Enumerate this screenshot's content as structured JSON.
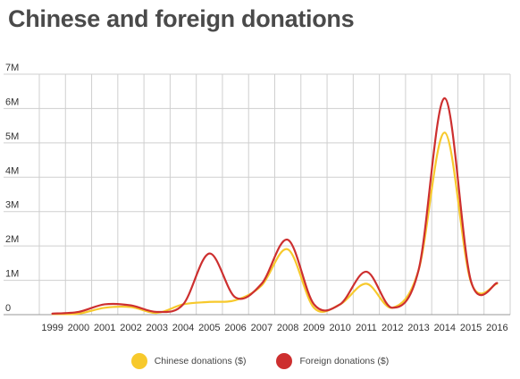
{
  "chart_data": {
    "type": "line",
    "title": "Chinese and foreign donations",
    "xlabel": "",
    "ylabel": "",
    "x": [
      "1999",
      "2000",
      "2001",
      "2002",
      "2003",
      "2004",
      "2005",
      "2006",
      "2007",
      "2008",
      "2009",
      "2010",
      "2011",
      "2012",
      "2013",
      "2014",
      "2015",
      "2016"
    ],
    "y_ticks": [
      {
        "value": 0,
        "label": "0"
      },
      {
        "value": 1000000,
        "label": "1M"
      },
      {
        "value": 2000000,
        "label": "2M"
      },
      {
        "value": 3000000,
        "label": "3M"
      },
      {
        "value": 4000000,
        "label": "4M"
      },
      {
        "value": 5000000,
        "label": "5M"
      },
      {
        "value": 6000000,
        "label": "6M"
      },
      {
        "value": 7000000,
        "label": "7M"
      }
    ],
    "ylim": [
      0,
      7000000
    ],
    "grid": true,
    "legend_position": "bottom",
    "series": [
      {
        "name": "Chinese donations ($)",
        "color": "#f7c92c",
        "values": [
          20000,
          30000,
          200000,
          220000,
          50000,
          300000,
          370000,
          420000,
          850000,
          1900000,
          200000,
          300000,
          900000,
          200000,
          1300000,
          5300000,
          950000,
          900000
        ]
      },
      {
        "name": "Foreign donations ($)",
        "color": "#cd2f2f",
        "values": [
          30000,
          80000,
          300000,
          270000,
          80000,
          300000,
          1780000,
          500000,
          900000,
          2180000,
          300000,
          300000,
          1250000,
          200000,
          1300000,
          6300000,
          980000,
          920000
        ]
      }
    ]
  }
}
